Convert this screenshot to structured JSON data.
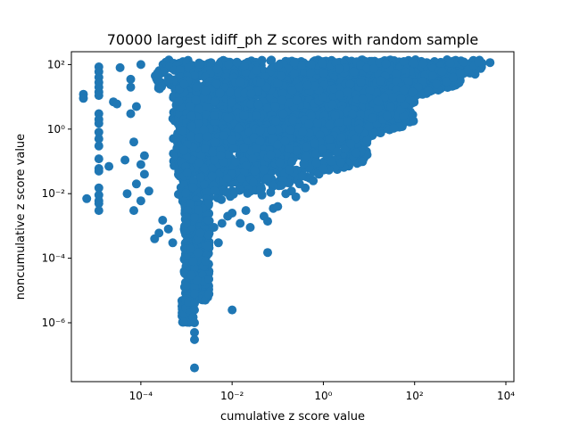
{
  "chart_data": {
    "type": "scatter",
    "title": "70000 largest idiff_ph Z scores with random sample",
    "xlabel": "cumulative z score value",
    "ylabel": "noncumulative z score value",
    "xscale": "log",
    "yscale": "log",
    "xlim": [
      3e-06,
      15000
    ],
    "ylim": [
      1.5e-08,
      250
    ],
    "grid": false,
    "color": "#1f77b4",
    "xticks": [
      {
        "value": 0.0001,
        "label": "10⁻⁴"
      },
      {
        "value": 0.01,
        "label": "10⁻²"
      },
      {
        "value": 1,
        "label": "10⁰"
      },
      {
        "value": 100,
        "label": "10²"
      },
      {
        "value": 10000,
        "label": "10⁴"
      }
    ],
    "yticks": [
      {
        "value": 1e-06,
        "label": "10⁻⁶"
      },
      {
        "value": 0.0001,
        "label": "10⁻⁴"
      },
      {
        "value": 0.01,
        "label": "10⁻²"
      },
      {
        "value": 1,
        "label": "10⁰"
      },
      {
        "value": 100,
        "label": "10²"
      }
    ],
    "points": [
      [
        5.5e-06,
        12
      ],
      [
        5.5e-06,
        9
      ],
      [
        6.5e-06,
        0.007
      ],
      [
        1.2e-05,
        85
      ],
      [
        1.2e-05,
        60
      ],
      [
        1.2e-05,
        40
      ],
      [
        1.2e-05,
        28
      ],
      [
        1.2e-05,
        20
      ],
      [
        1.2e-05,
        14
      ],
      [
        1.2e-05,
        11
      ],
      [
        1.2e-05,
        3
      ],
      [
        1.2e-05,
        2
      ],
      [
        1.2e-05,
        1.5
      ],
      [
        1.2e-05,
        0.8
      ],
      [
        1.2e-05,
        0.5
      ],
      [
        1.2e-05,
        0.3
      ],
      [
        1.2e-05,
        0.12
      ],
      [
        1.2e-05,
        0.06
      ],
      [
        1.2e-05,
        0.05
      ],
      [
        1.2e-05,
        0.015
      ],
      [
        1.2e-05,
        0.009
      ],
      [
        1.2e-05,
        0.006
      ],
      [
        1.2e-05,
        0.005
      ],
      [
        1.2e-05,
        0.003
      ],
      [
        2e-05,
        0.07
      ],
      [
        2.5e-05,
        7
      ],
      [
        3e-05,
        6
      ],
      [
        3.5e-05,
        80
      ],
      [
        4.5e-05,
        0.11
      ],
      [
        5e-05,
        0.01
      ],
      [
        6e-05,
        35
      ],
      [
        6e-05,
        20
      ],
      [
        6e-05,
        3
      ],
      [
        7e-05,
        0.4
      ],
      [
        7e-05,
        0.003
      ],
      [
        8e-05,
        0.02
      ],
      [
        8e-05,
        5
      ],
      [
        0.0001,
        0.006
      ],
      [
        0.0001,
        100
      ],
      [
        0.0001,
        0.08
      ],
      [
        0.00012,
        0.15
      ],
      [
        0.00012,
        0.04
      ],
      [
        0.00015,
        0.012
      ],
      [
        0.0002,
        0.0004
      ],
      [
        0.00025,
        0.0006
      ],
      [
        0.0003,
        0.0015
      ],
      [
        0.0004,
        0.0008
      ],
      [
        0.0005,
        0.0003
      ],
      [
        0.001,
        0.0012
      ],
      [
        0.0015,
        0.0018
      ],
      [
        0.002,
        0.0006
      ],
      [
        0.003,
        0.0015
      ],
      [
        0.004,
        0.0009
      ],
      [
        0.005,
        0.0003
      ],
      [
        0.006,
        0.0012
      ],
      [
        0.008,
        0.002
      ],
      [
        0.01,
        0.0025
      ],
      [
        0.015,
        0.0012
      ],
      [
        0.02,
        0.003
      ],
      [
        0.025,
        0.0009
      ],
      [
        0.05,
        0.002
      ],
      [
        0.06,
        0.0014
      ],
      [
        0.08,
        0.0035
      ],
      [
        0.1,
        0.004
      ],
      [
        0.15,
        0.01
      ],
      [
        0.2,
        0.012
      ],
      [
        0.25,
        0.008
      ],
      [
        0.3,
        0.02
      ],
      [
        0.4,
        0.015
      ],
      [
        0.5,
        0.03
      ],
      [
        0.6,
        0.025
      ],
      [
        0.8,
        0.04
      ],
      [
        1,
        0.06
      ],
      [
        1.5,
        0.1
      ],
      [
        2,
        0.2
      ],
      [
        3,
        0.25
      ],
      [
        5,
        0.5
      ],
      [
        8,
        0.8
      ],
      [
        10,
        1.2
      ],
      [
        15,
        1.5
      ],
      [
        20,
        2
      ],
      [
        30,
        3
      ],
      [
        50,
        4
      ],
      [
        60,
        6
      ],
      [
        80,
        8
      ],
      [
        100,
        10
      ],
      [
        150,
        12
      ],
      [
        200,
        15
      ],
      [
        300,
        25
      ],
      [
        500,
        30
      ],
      [
        700,
        40
      ],
      [
        1000,
        55
      ],
      [
        1500,
        70
      ],
      [
        2000,
        90
      ],
      [
        3000,
        110
      ],
      [
        4500,
        115
      ],
      [
        2500,
        120
      ],
      [
        1200,
        120
      ],
      [
        600,
        110
      ],
      [
        400,
        60
      ],
      [
        250,
        45
      ],
      [
        150,
        30
      ],
      [
        120,
        20
      ],
      [
        90,
        14
      ],
      [
        50,
        9
      ],
      [
        30,
        5
      ],
      [
        25,
        2.5
      ],
      [
        12,
        2.2
      ],
      [
        6,
        1.0
      ],
      [
        4,
        0.35
      ],
      [
        2.5,
        0.55
      ],
      [
        1.2,
        0.15
      ],
      [
        0.7,
        0.09
      ],
      [
        0.35,
        0.035
      ],
      [
        0.12,
        0.018
      ],
      [
        0.07,
        0.011
      ],
      [
        0.045,
        0.009
      ],
      [
        0.01,
        2.5e-06
      ],
      [
        0.06,
        0.00015
      ],
      [
        0.0015,
        0.0002
      ],
      [
        0.0015,
        0.0001
      ],
      [
        0.0015,
        5e-05
      ],
      [
        0.0015,
        3e-05
      ],
      [
        0.0015,
        2e-05
      ],
      [
        0.0015,
        1.2e-05
      ],
      [
        0.0015,
        8e-06
      ],
      [
        0.0015,
        4e-06
      ],
      [
        0.0015,
        2.5e-06
      ],
      [
        0.0014,
        1.5e-06
      ],
      [
        0.0015,
        1e-06
      ],
      [
        0.0015,
        5e-07
      ],
      [
        0.0015,
        3e-07
      ],
      [
        0.0015,
        4e-08
      ],
      [
        0.0013,
        3e-05
      ],
      [
        0.0017,
        2e-05
      ],
      [
        0.0012,
        0.0002
      ],
      [
        0.0018,
        0.00015
      ],
      [
        0.0014,
        8e-05
      ]
    ],
    "dense_regions": [
      {
        "x_log": [
          -3.7,
          3.5
        ],
        "y_top_log": [
          2.15,
          2.15
        ],
        "y_bottom_log": [
          1.2,
          1.7
        ],
        "count": 500
      },
      {
        "x_log": [
          -3.3,
          3.0
        ],
        "y_top_log": [
          2.1,
          2.1
        ],
        "y_bottom_log": [
          -1.2,
          1.4
        ],
        "count": 1400
      },
      {
        "x_log": [
          -3.2,
          2.0
        ],
        "y_top_log": [
          1.5,
          1.5
        ],
        "y_bottom_log": [
          -2.3,
          0.2
        ],
        "count": 1200
      },
      {
        "x_log": [
          -3.1,
          1.0
        ],
        "y_top_log": [
          0.5,
          0.5
        ],
        "y_bottom_log": [
          -2.6,
          -1.0
        ],
        "count": 700
      },
      {
        "x_log": [
          -3.05,
          -2.5
        ],
        "y_top_log": [
          -2.3,
          -2.3
        ],
        "y_bottom_log": [
          -5.3,
          -5.3
        ],
        "count": 400
      },
      {
        "x_log": [
          -3.1,
          -2.9
        ],
        "y_top_log": [
          -5.3,
          -5.3
        ],
        "y_bottom_log": [
          -6.0,
          -6.0
        ],
        "count": 80
      }
    ]
  }
}
